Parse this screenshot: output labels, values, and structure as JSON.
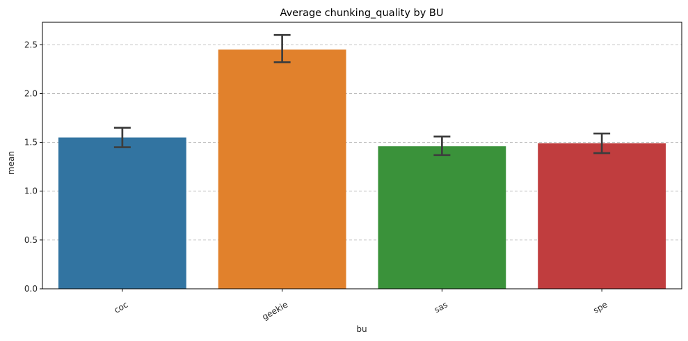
{
  "chart_data": {
    "type": "bar",
    "title": "Average chunking_quality by BU",
    "xlabel": "bu",
    "ylabel": "mean",
    "categories": [
      "coc",
      "geekie",
      "sas",
      "spe"
    ],
    "values": [
      1.55,
      2.45,
      1.46,
      1.49
    ],
    "error_low": [
      1.45,
      2.32,
      1.37,
      1.39
    ],
    "error_high": [
      1.65,
      2.6,
      1.56,
      1.59
    ],
    "colors": [
      "#3274a1",
      "#e1812c",
      "#3a923a",
      "#c03d3e"
    ],
    "ylim": [
      0,
      2.73
    ],
    "yticks": [
      0.0,
      0.5,
      1.0,
      1.5,
      2.0,
      2.5
    ],
    "ytick_labels": [
      "0.0",
      "0.5",
      "1.0",
      "1.5",
      "2.0",
      "2.5"
    ],
    "grid": "y-dashed"
  }
}
